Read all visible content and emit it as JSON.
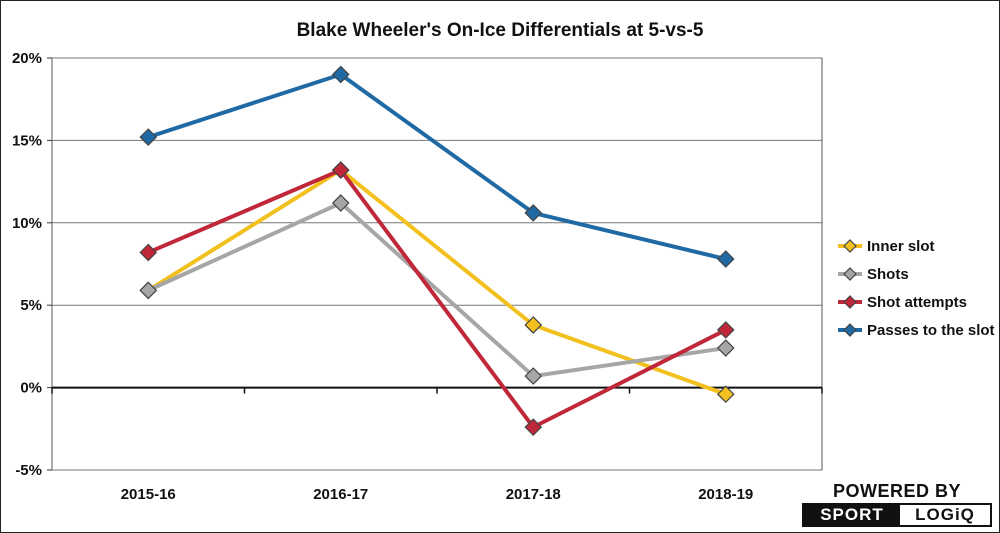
{
  "chart_data": {
    "type": "line",
    "title": "Blake Wheeler's On-Ice Differentials at 5-vs-5",
    "xlabel": "",
    "ylabel": "",
    "categories": [
      "2015-16",
      "2016-17",
      "2017-18",
      "2018-19"
    ],
    "ylim": [
      -5,
      20
    ],
    "yticks": [
      -5,
      0,
      5,
      10,
      15,
      20
    ],
    "ytick_labels": [
      "-5%",
      "0%",
      "5%",
      "10%",
      "15%",
      "20%"
    ],
    "grid": true,
    "legend": "right",
    "series": [
      {
        "name": "Inner slot",
        "color": "#f2c11f",
        "values": [
          5.9,
          13.2,
          3.8,
          -0.4
        ]
      },
      {
        "name": "Shots",
        "color": "#a6a6a6",
        "values": [
          5.9,
          11.2,
          0.7,
          2.4
        ]
      },
      {
        "name": "Shot attempts",
        "color": "#c0283a",
        "values": [
          8.2,
          13.2,
          -2.4,
          3.5
        ]
      },
      {
        "name": "Passes to the slot",
        "color": "#1f6aa5",
        "values": [
          15.2,
          19.0,
          10.6,
          7.8
        ]
      }
    ]
  },
  "branding": {
    "powered_by": "POWERED BY",
    "sport": "SPORT",
    "logiq": "LOGiQ"
  }
}
